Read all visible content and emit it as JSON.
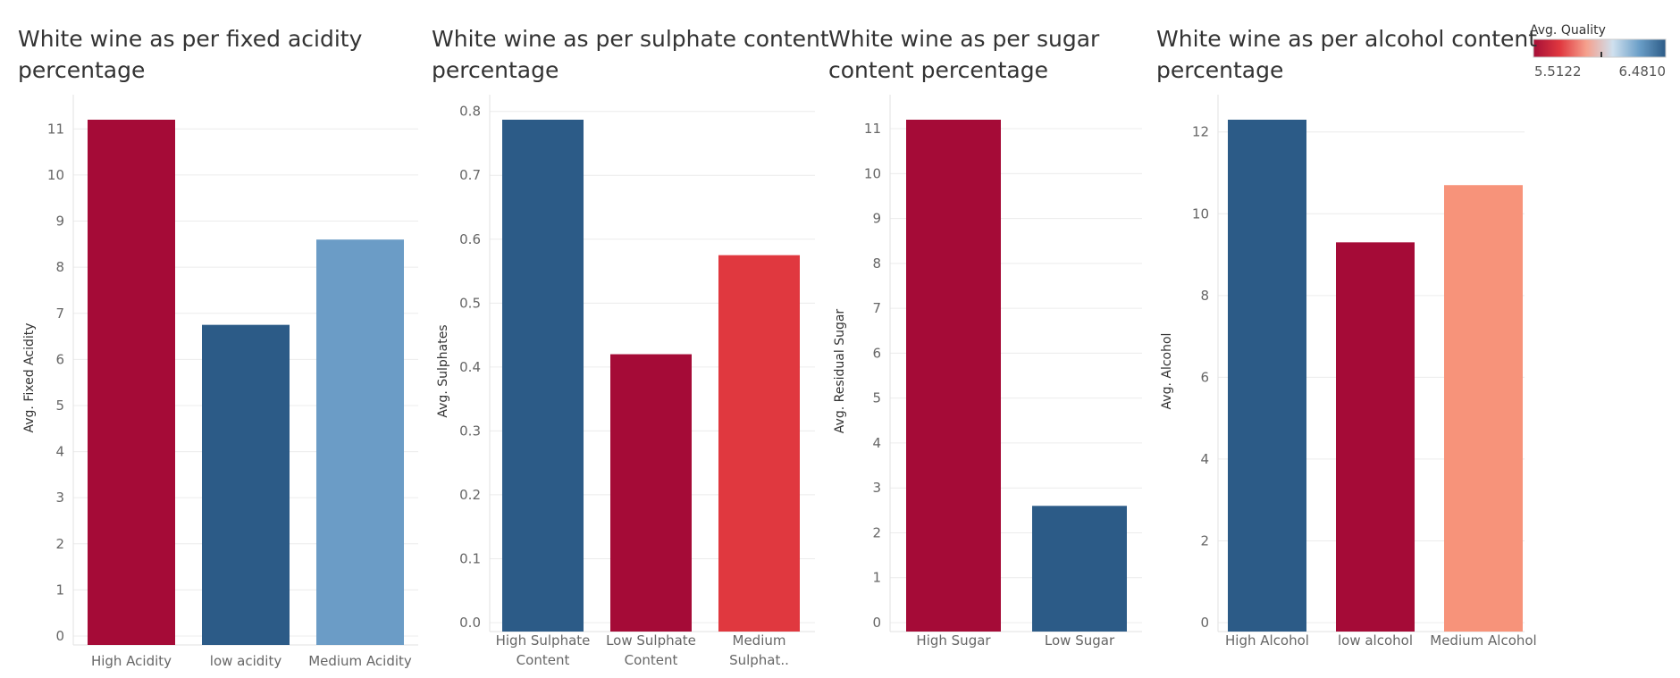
{
  "legend": {
    "title": "Avg. Quality",
    "min_label": "5.5122",
    "max_label": "6.4810",
    "stops": [
      "#a50f37",
      "#e0383f",
      "#f5a08d",
      "#cfe0ee",
      "#6b9fc8",
      "#2c5b87"
    ]
  },
  "chart_data": [
    {
      "type": "bar",
      "title": [
        "White wine as per fixed acidity",
        "percentage"
      ],
      "ylabel": "Avg. Fixed Acidity",
      "xlabel": "",
      "categories": [
        [
          "High Acidity"
        ],
        [
          "low acidity"
        ],
        [
          "Medium Acidity"
        ]
      ],
      "values": [
        11.2,
        6.75,
        8.6
      ],
      "colors": [
        "#a50b37",
        "#2c5b87",
        "#6b9cc6"
      ],
      "ylim": [
        0,
        11.2
      ],
      "ticks": [
        0,
        1,
        2,
        3,
        4,
        5,
        6,
        7,
        8,
        9,
        10,
        11
      ],
      "grid": true
    },
    {
      "type": "bar",
      "title": [
        "White wine as per sulphate content",
        "percentage"
      ],
      "ylabel": "Avg. Sulphates",
      "xlabel": "",
      "categories": [
        [
          "High Sulphate",
          "Content"
        ],
        [
          "Low Sulphate",
          "Content"
        ],
        [
          "Medium",
          "Sulphat.."
        ]
      ],
      "values": [
        0.787,
        0.42,
        0.575
      ],
      "colors": [
        "#2c5b87",
        "#a50b37",
        "#e0383f"
      ],
      "ylim": [
        0,
        0.787
      ],
      "ticks": [
        0.0,
        0.1,
        0.2,
        0.3,
        0.4,
        0.5,
        0.6,
        0.7,
        0.8
      ],
      "tick_labels": [
        "0.0",
        "0.1",
        "0.2",
        "0.3",
        "0.4",
        "0.5",
        "0.6",
        "0.7",
        "0.8"
      ],
      "grid": true
    },
    {
      "type": "bar",
      "title": [
        "White wine as per sugar",
        "content percentage"
      ],
      "ylabel": "Avg. Residual Sugar",
      "xlabel": "",
      "categories": [
        [
          "High Sugar"
        ],
        [
          "Low Sugar"
        ]
      ],
      "values": [
        11.2,
        2.6
      ],
      "colors": [
        "#a50b37",
        "#2c5b87"
      ],
      "ylim": [
        0,
        11.2
      ],
      "ticks": [
        0,
        1,
        2,
        3,
        4,
        5,
        6,
        7,
        8,
        9,
        10,
        11
      ],
      "grid": true
    },
    {
      "type": "bar",
      "title": [
        "White wine as per alcohol content",
        "percentage"
      ],
      "ylabel": "Avg. Alcohol",
      "xlabel": "",
      "categories": [
        [
          "High Alcohol"
        ],
        [
          "low alcohol"
        ],
        [
          "Medium Alcohol"
        ]
      ],
      "values": [
        12.3,
        9.3,
        10.7
      ],
      "colors": [
        "#2c5b87",
        "#a50b37",
        "#f7937a"
      ],
      "ylim": [
        0,
        12.3
      ],
      "ticks": [
        0,
        2,
        4,
        6,
        8,
        10,
        12
      ],
      "grid": true
    }
  ]
}
